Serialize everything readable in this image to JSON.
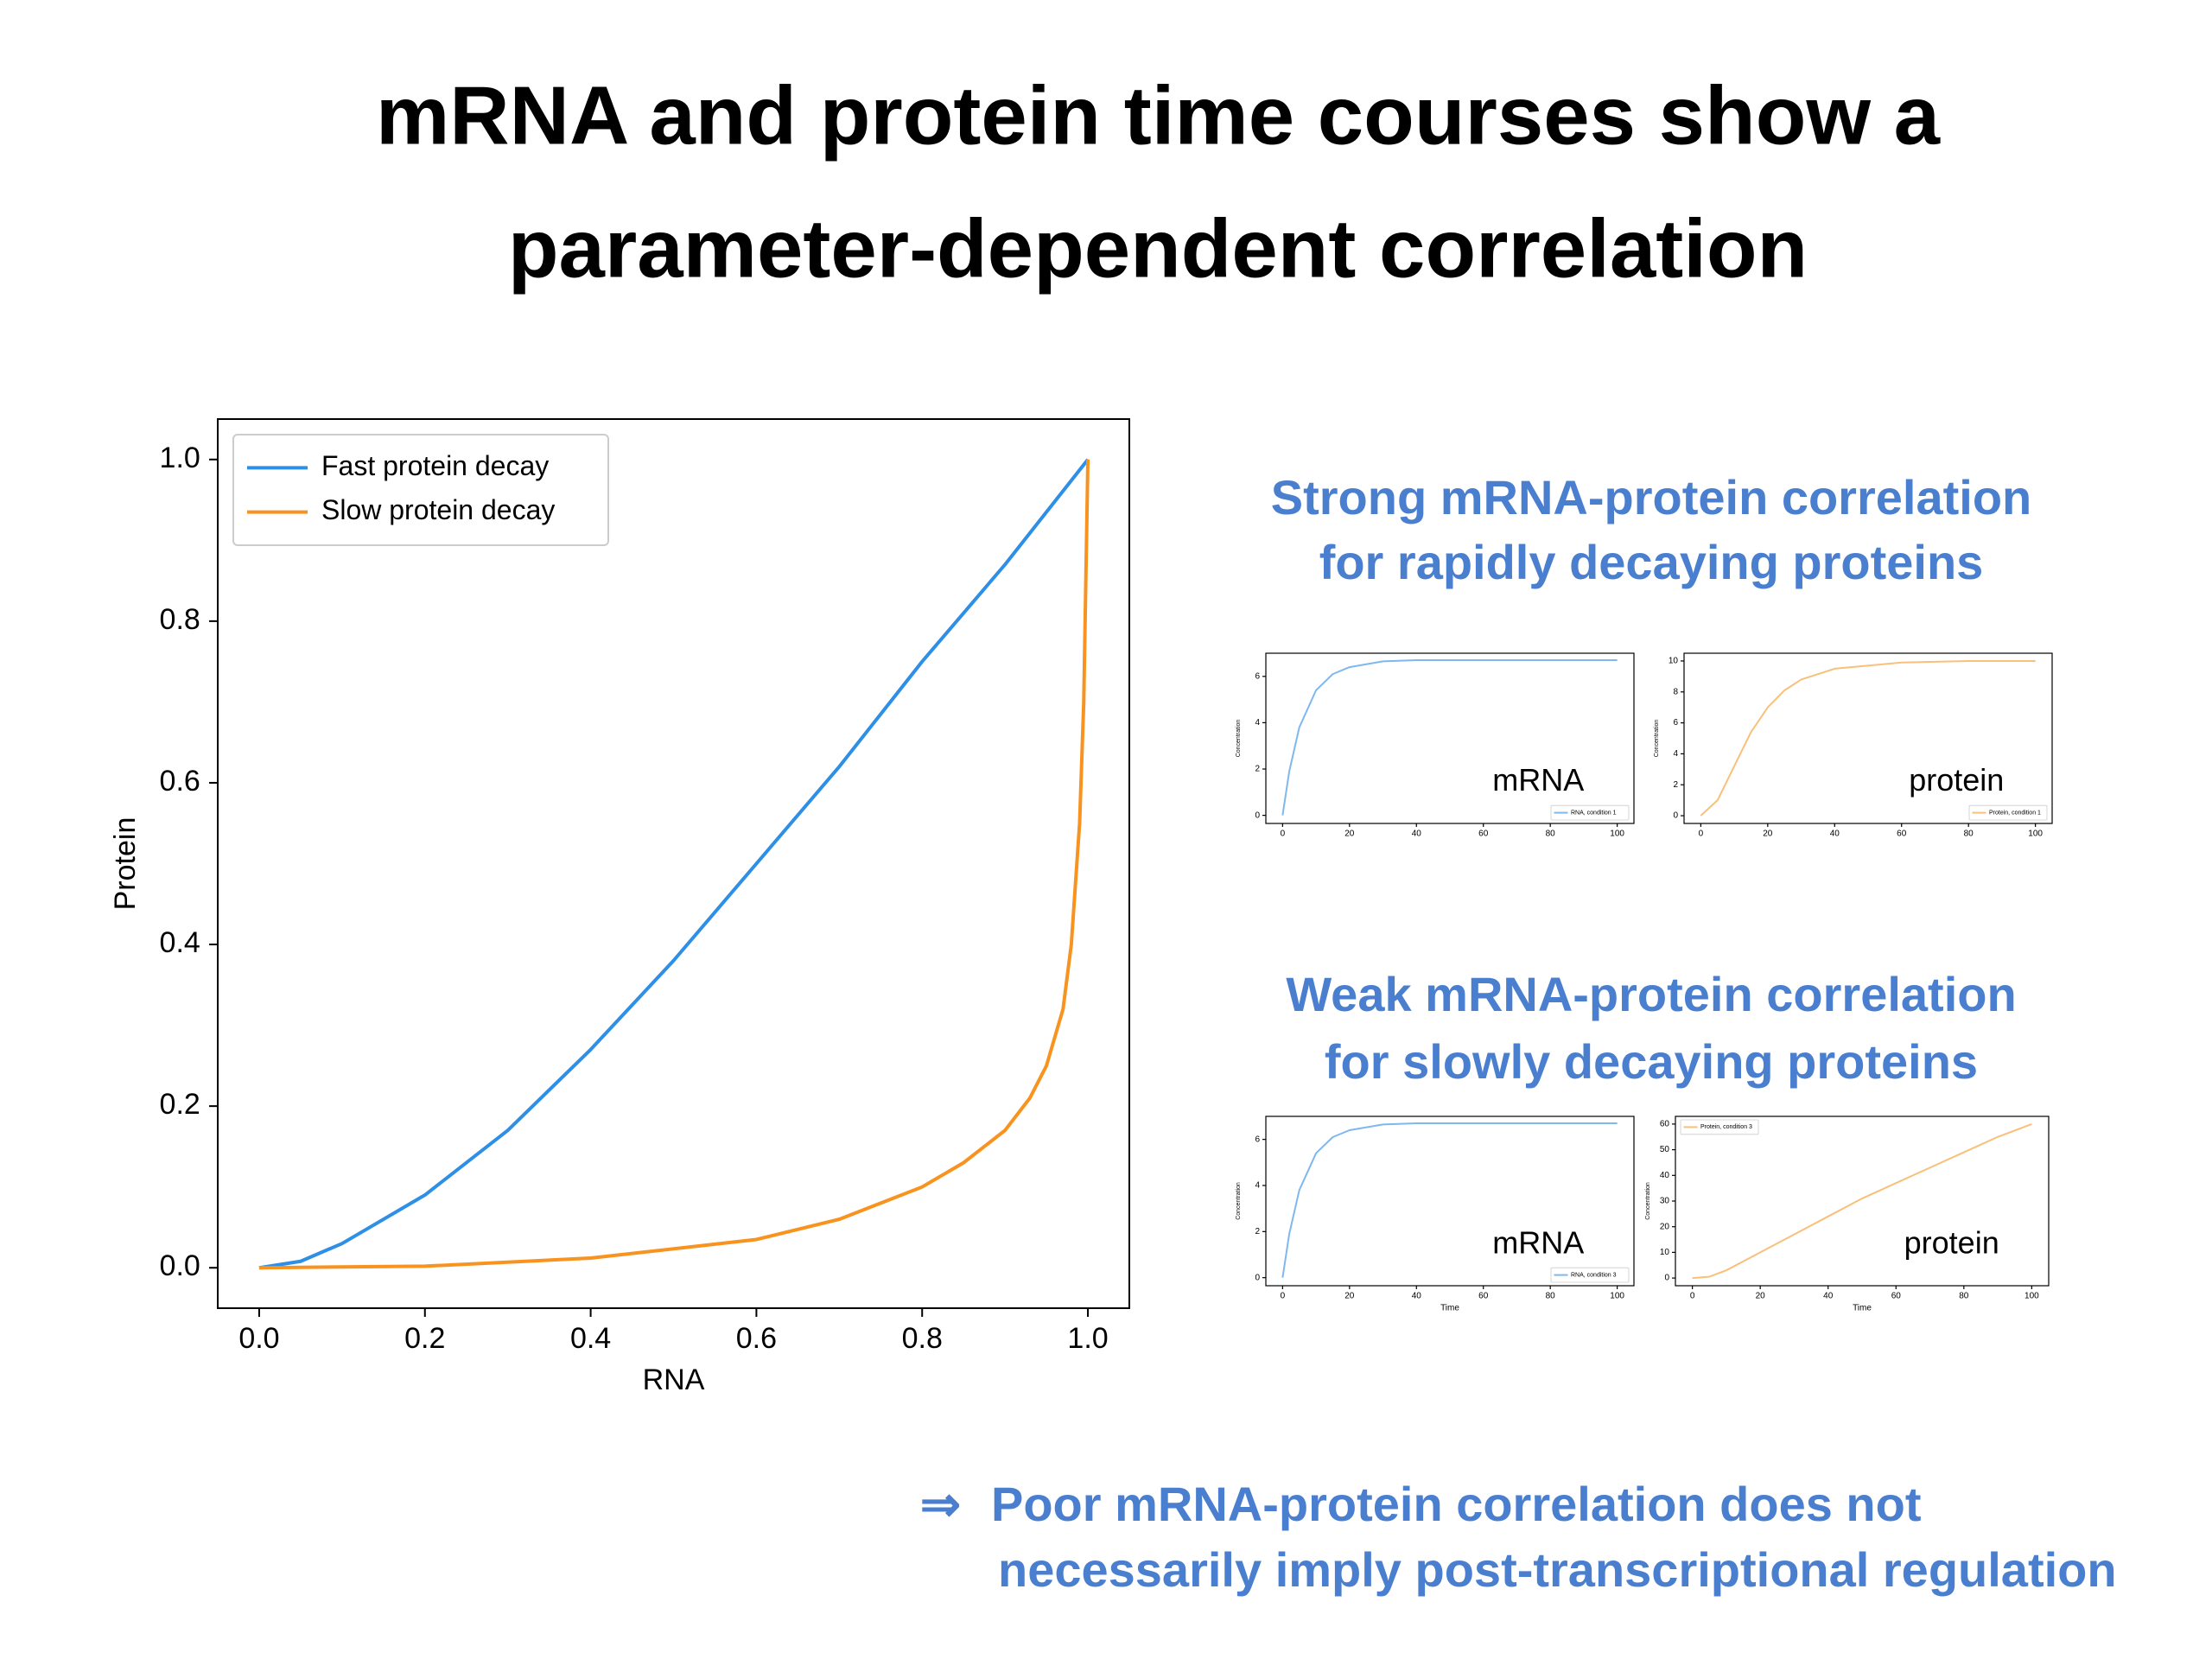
{
  "slide": {
    "title": [
      "mRNA and protein time courses show a",
      "parameter-dependent correlation"
    ],
    "strong_caption": [
      "Strong mRNA-protein correlation",
      "for rapidly decaying proteins"
    ],
    "weak_caption": [
      "Weak mRNA-protein correlation",
      "for slowly decaying proteins"
    ],
    "conclusion": {
      "arrow": "⇒",
      "lines": [
        "Poor mRNA-protein correlation does not",
        "necessarily imply post-transcriptional regulation"
      ]
    }
  },
  "chart_data": [
    {
      "type": "line",
      "xlabel": "RNA",
      "ylabel": "Protein",
      "legend": "upper left",
      "xlim": [
        -0.05,
        1.05
      ],
      "ylim": [
        -0.05,
        1.05
      ],
      "xticks": [
        {
          "value": 0,
          "label": "0.0"
        },
        0.2,
        0.4,
        0.6,
        0.8,
        {
          "value": 1,
          "label": "1.0"
        }
      ],
      "yticks": [
        {
          "value": 0,
          "label": "0.0"
        },
        0.2,
        0.4,
        0.6,
        0.8,
        {
          "value": 1,
          "label": "1.0"
        }
      ],
      "series": [
        {
          "name": "Fast protein decay",
          "color": "#2e8fe6",
          "x": [
            0,
            0.05,
            0.1,
            0.2,
            0.3,
            0.4,
            0.5,
            0.6,
            0.7,
            0.8,
            0.9,
            1.0
          ],
          "values": [
            0,
            0.008,
            0.03,
            0.09,
            0.17,
            0.27,
            0.38,
            0.5,
            0.62,
            0.75,
            0.87,
            1.0
          ]
        },
        {
          "name": "Slow protein decay",
          "color": "#f7931e",
          "x": [
            0,
            0.2,
            0.4,
            0.6,
            0.7,
            0.8,
            0.85,
            0.9,
            0.93,
            0.95,
            0.97,
            0.98,
            0.99,
            0.995,
            1.0
          ],
          "values": [
            0,
            0.002,
            0.012,
            0.035,
            0.06,
            0.1,
            0.13,
            0.17,
            0.21,
            0.25,
            0.32,
            0.4,
            0.55,
            0.7,
            1.0
          ]
        }
      ]
    },
    {
      "type": "line",
      "ylabel": "Concentration",
      "annotation": "mRNA",
      "legend": "lower right",
      "xlim": [
        -5,
        105
      ],
      "ylim": [
        -0.35,
        7.0
      ],
      "xticks": [
        0,
        20,
        40,
        60,
        80,
        100
      ],
      "yticks": [
        0,
        2,
        4,
        6
      ],
      "series": [
        {
          "name": "RNA, condition 1",
          "color": "#7fb8ee",
          "x": [
            0,
            2,
            5,
            10,
            15,
            20,
            30,
            40,
            60,
            80,
            100
          ],
          "values": [
            0,
            1.9,
            3.8,
            5.4,
            6.1,
            6.4,
            6.65,
            6.7,
            6.7,
            6.7,
            6.7
          ]
        }
      ]
    },
    {
      "type": "line",
      "ylabel": "Concentration",
      "annotation": "protein",
      "legend": "lower right",
      "xlim": [
        -5,
        105
      ],
      "ylim": [
        -0.5,
        10.5
      ],
      "xticks": [
        0,
        20,
        40,
        60,
        80,
        100
      ],
      "yticks": [
        0,
        2,
        4,
        6,
        8,
        10
      ],
      "series": [
        {
          "name": "Protein, condition 1",
          "color": "#f9c07a",
          "x": [
            0,
            5,
            10,
            15,
            20,
            25,
            30,
            40,
            60,
            80,
            100
          ],
          "values": [
            0,
            1.0,
            3.2,
            5.4,
            7.0,
            8.1,
            8.8,
            9.5,
            9.9,
            10,
            10
          ]
        }
      ]
    },
    {
      "type": "line",
      "xlabel": "Time",
      "ylabel": "Concentration",
      "annotation": "mRNA",
      "legend": "lower right",
      "xlim": [
        -5,
        105
      ],
      "ylim": [
        -0.35,
        7.0
      ],
      "xticks": [
        0,
        20,
        40,
        60,
        80,
        100
      ],
      "yticks": [
        0,
        2,
        4,
        6
      ],
      "series": [
        {
          "name": "RNA, condition 3",
          "color": "#7fb8ee",
          "x": [
            0,
            2,
            5,
            10,
            15,
            20,
            30,
            40,
            60,
            80,
            100
          ],
          "values": [
            0,
            1.9,
            3.8,
            5.4,
            6.1,
            6.4,
            6.65,
            6.7,
            6.7,
            6.7,
            6.7
          ]
        }
      ]
    },
    {
      "type": "line",
      "xlabel": "Time",
      "ylabel": "Concentration",
      "annotation": "protein",
      "legend": "upper left",
      "xlim": [
        -5,
        105
      ],
      "ylim": [
        -3,
        63
      ],
      "xticks": [
        0,
        20,
        40,
        60,
        80,
        100
      ],
      "yticks": [
        0,
        10,
        20,
        30,
        40,
        50,
        60
      ],
      "series": [
        {
          "name": "Protein, condition 3",
          "color": "#f9c07a",
          "x": [
            0,
            5,
            10,
            20,
            30,
            40,
            50,
            60,
            70,
            80,
            90,
            100
          ],
          "values": [
            0,
            0.5,
            3,
            10,
            17,
            24,
            31,
            37,
            43,
            49,
            55,
            60
          ]
        }
      ]
    }
  ]
}
